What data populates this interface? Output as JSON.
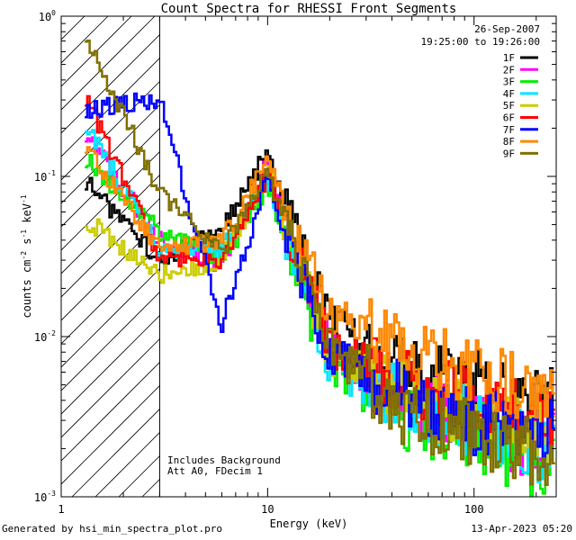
{
  "chart_data": {
    "type": "line",
    "title": "Count Spectra for RHESSI Front Segments",
    "xlabel": "Energy (keV)",
    "ylabel_parts": {
      "a": "counts cm",
      "b": "-2",
      "c": " s",
      "d": "-1",
      "e": " keV",
      "f": "-1"
    },
    "xscale": "log",
    "yscale": "log",
    "xlim": [
      1,
      250
    ],
    "ylim": [
      0.001,
      1
    ],
    "x_tick_labels": [
      {
        "value": 1,
        "label": "1"
      },
      {
        "value": 10,
        "label": "10"
      },
      {
        "value": 100,
        "label": "100"
      }
    ],
    "y_tick_labels": [
      {
        "value": 0.001,
        "mant": "10",
        "exp": "-3"
      },
      {
        "value": 0.01,
        "mant": "10",
        "exp": "-2"
      },
      {
        "value": 0.1,
        "mant": "10",
        "exp": "-1"
      },
      {
        "value": 1,
        "mant": "10",
        "exp": "0"
      }
    ],
    "excluded_region_keV": [
      1,
      3
    ],
    "date": "26-Sep-2007",
    "time_range": "19:25:00 to 19:26:00",
    "annotations": [
      "Includes Background",
      "Att A0, FDecim 1"
    ],
    "legend_position": "top-right",
    "peak_keV": 10,
    "series": [
      {
        "name": "1F",
        "color": "#000000",
        "values_at": {
          "1.3": 0.095,
          "3": 0.03,
          "6": 0.047,
          "10": 0.13,
          "20": 0.012,
          "50": 0.006,
          "100": 0.005,
          "200": 0.004
        }
      },
      {
        "name": "2F",
        "color": "#ff00ff",
        "values_at": {
          "1.3": 0.19,
          "3": 0.04,
          "6": 0.028,
          "10": 0.11,
          "20": 0.008,
          "50": 0.004,
          "100": 0.003,
          "200": 0.002
        }
      },
      {
        "name": "3F",
        "color": "#00ee00",
        "values_at": {
          "1.3": 0.13,
          "3": 0.045,
          "6": 0.03,
          "10": 0.08,
          "20": 0.006,
          "50": 0.003,
          "100": 0.0025,
          "200": 0.0015
        }
      },
      {
        "name": "4F",
        "color": "#00e5ff",
        "values_at": {
          "1.3": 0.22,
          "3": 0.035,
          "6": 0.035,
          "10": 0.09,
          "20": 0.007,
          "50": 0.0035,
          "100": 0.003,
          "200": 0.002
        }
      },
      {
        "name": "5F",
        "color": "#cccc00",
        "values_at": {
          "1.3": 0.055,
          "3": 0.024,
          "6": 0.03,
          "10": 0.1,
          "20": 0.008,
          "50": 0.004,
          "100": 0.003,
          "200": 0.0025
        }
      },
      {
        "name": "6F",
        "color": "#ff0000",
        "values_at": {
          "1.3": 0.32,
          "3": 0.032,
          "6": 0.028,
          "10": 0.1,
          "20": 0.009,
          "50": 0.005,
          "100": 0.0038,
          "200": 0.003
        }
      },
      {
        "name": "7F",
        "color": "#0000ff",
        "values_at": {
          "1.3": 0.26,
          "3": 0.3,
          "6": 0.012,
          "10": 0.09,
          "20": 0.008,
          "50": 0.004,
          "100": 0.003,
          "200": 0.0025
        }
      },
      {
        "name": "8F",
        "color": "#ff8800",
        "values_at": {
          "1.3": 0.16,
          "3": 0.035,
          "6": 0.04,
          "10": 0.12,
          "20": 0.014,
          "50": 0.008,
          "100": 0.006,
          "200": 0.0045
        }
      },
      {
        "name": "9F",
        "color": "#807000",
        "values_at": {
          "1.3": 0.8,
          "3": 0.08,
          "6": 0.034,
          "10": 0.1,
          "20": 0.009,
          "50": 0.003,
          "100": 0.0025,
          "200": 0.0018
        }
      }
    ]
  },
  "footer": {
    "generator": "Generated by hsi_min_spectra_plot.pro",
    "timestamp": "13-Apr-2023 05:20"
  }
}
